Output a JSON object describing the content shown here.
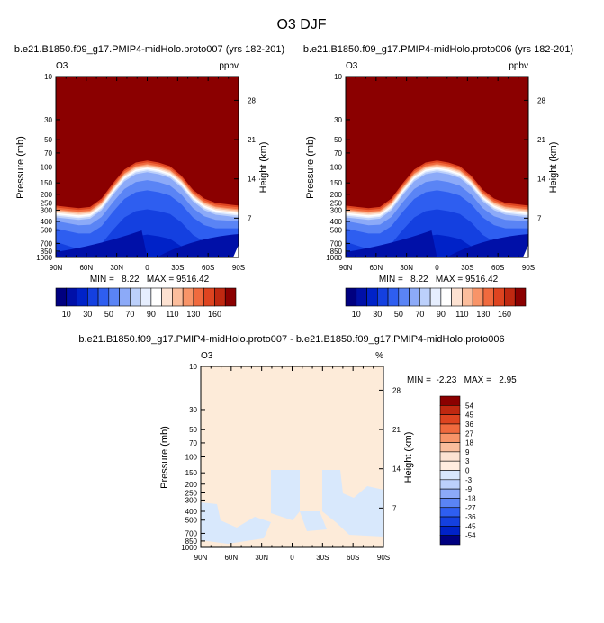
{
  "page_title": "O3 DJF",
  "chart_data": [
    {
      "type": "heatmap",
      "title": "b.e21.B1850.f09_g17.PMIP4-midHolo.proto007 (yrs 182-201)",
      "variable": "O3",
      "units": "ppbv",
      "ylabel": "Pressure (mb)",
      "ylabel_right": "Height (km)",
      "x_ticks": [
        "90N",
        "60N",
        "30N",
        "0",
        "30S",
        "60S",
        "90S"
      ],
      "y_ticks": [
        "10",
        "30",
        "50",
        "70",
        "100",
        "150",
        "200",
        "250",
        "300",
        "400",
        "500",
        "700",
        "850",
        "1000"
      ],
      "height_ticks": [
        "28",
        "21",
        "14",
        "7"
      ],
      "ylim": [
        1000,
        10
      ],
      "stats": "MIN =   8.22   MAX = 9516.42",
      "min": 8.22,
      "max": 9516.42,
      "colorbar": {
        "levels": [
          10,
          20,
          30,
          40,
          50,
          60,
          70,
          80,
          90,
          100,
          110,
          120,
          130,
          140,
          150,
          160
        ],
        "labels": [
          "10",
          "30",
          "50",
          "70",
          "90",
          "110",
          "130",
          "160"
        ],
        "colors": [
          "#000080",
          "#0010a8",
          "#0022c8",
          "#1440e0",
          "#2e5ef0",
          "#5a84f5",
          "#8caaf8",
          "#bcd0fb",
          "#e6eefe",
          "#ffffff",
          "#fde2d2",
          "#fbbd9c",
          "#f89468",
          "#f06a3e",
          "#de4420",
          "#c02810",
          "#8b0000"
        ]
      },
      "field": {
        "levels_hpa": [
          10,
          200,
          250,
          280,
          300,
          400,
          600,
          800,
          1000
        ],
        "profile_top_hpa": [
          300,
          310,
          320,
          310,
          250,
          170,
          120,
          100,
          95,
          100,
          110,
          140,
          200,
          250,
          280,
          290,
          300
        ]
      }
    },
    {
      "type": "heatmap",
      "title": "b.e21.B1850.f09_g17.PMIP4-midHolo.proto006 (yrs 182-201)",
      "variable": "O3",
      "units": "ppbv",
      "ylabel": "Pressure (mb)",
      "ylabel_right": "Height (km)",
      "x_ticks": [
        "90N",
        "60N",
        "30N",
        "0",
        "30S",
        "60S",
        "90S"
      ],
      "y_ticks": [
        "10",
        "30",
        "50",
        "70",
        "100",
        "150",
        "200",
        "250",
        "300",
        "400",
        "500",
        "700",
        "850",
        "1000"
      ],
      "height_ticks": [
        "28",
        "21",
        "14",
        "7"
      ],
      "ylim": [
        1000,
        10
      ],
      "stats": "MIN =   8.22   MAX = 9516.42",
      "min": 8.22,
      "max": 9516.42,
      "colorbar": {
        "levels": [
          10,
          20,
          30,
          40,
          50,
          60,
          70,
          80,
          90,
          100,
          110,
          120,
          130,
          140,
          150,
          160
        ],
        "labels": [
          "10",
          "30",
          "50",
          "70",
          "90",
          "110",
          "130",
          "160"
        ],
        "colors": [
          "#000080",
          "#0010a8",
          "#0022c8",
          "#1440e0",
          "#2e5ef0",
          "#5a84f5",
          "#8caaf8",
          "#bcd0fb",
          "#e6eefe",
          "#ffffff",
          "#fde2d2",
          "#fbbd9c",
          "#f89468",
          "#f06a3e",
          "#de4420",
          "#c02810",
          "#8b0000"
        ]
      }
    },
    {
      "type": "heatmap",
      "title": "b.e21.B1850.f09_g17.PMIP4-midHolo.proto007 - b.e21.B1850.f09_g17.PMIP4-midHolo.proto006",
      "variable": "O3",
      "units": "%",
      "ylabel": "Pressure (mb)",
      "ylabel_right": "Height (km)",
      "x_ticks": [
        "90N",
        "60N",
        "30N",
        "0",
        "30S",
        "60S",
        "90S"
      ],
      "y_ticks": [
        "10",
        "30",
        "50",
        "70",
        "100",
        "150",
        "200",
        "250",
        "300",
        "400",
        "500",
        "700",
        "850",
        "1000"
      ],
      "height_ticks": [
        "28",
        "21",
        "14",
        "7"
      ],
      "ylim": [
        1000,
        10
      ],
      "stats": "MIN =  -2.23   MAX =   2.95",
      "min": -2.23,
      "max": 2.95,
      "colorbar": {
        "labels": [
          "54",
          "45",
          "36",
          "27",
          "18",
          "9",
          "3",
          "0",
          "-3",
          "-9",
          "-18",
          "-27",
          "-36",
          "-45",
          "-54"
        ],
        "colors": [
          "#8b0000",
          "#c02810",
          "#de4420",
          "#f06a3e",
          "#f89468",
          "#fbbd9c",
          "#fde2d2",
          "#ffece0",
          "#d8e8fc",
          "#bcd0fb",
          "#8caaf8",
          "#5a84f5",
          "#2e5ef0",
          "#1440e0",
          "#0022c8",
          "#000080"
        ]
      },
      "field_colors": {
        "positive_small": "#fdebd9",
        "negative_small": "#d8e8fc"
      }
    }
  ]
}
